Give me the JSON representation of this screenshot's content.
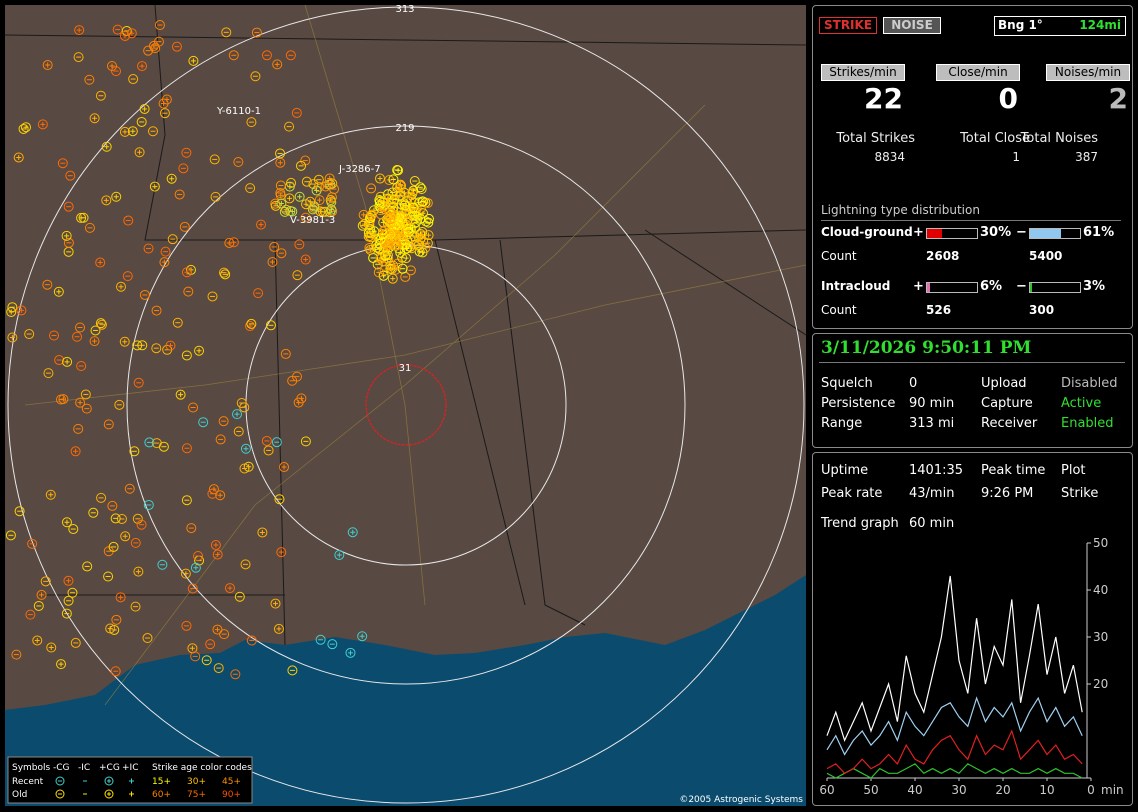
{
  "map": {
    "range_labels": [
      "313",
      "219",
      "31"
    ],
    "storm_labels": [
      "Y-6110-1",
      "J-3286-7",
      "V-3981-3"
    ],
    "legend": {
      "symbols": "Symbols",
      "columns": [
        "-CG",
        "-IC",
        "+CG",
        "+IC"
      ],
      "age_title": "Strike age color codes",
      "recent": "Recent",
      "old": "Old",
      "recent_ages": [
        "15+",
        "30+",
        "45+"
      ],
      "old_ages": [
        "60+",
        "75+",
        "90+"
      ]
    },
    "copyright": "©2005 Astrogenic Systems"
  },
  "header": {
    "strike": "STRIKE",
    "noise": "NOISE",
    "bearing": "Bng 1°",
    "distance": "124mi"
  },
  "rates": [
    {
      "label": "Strikes/min",
      "value": 22,
      "total_label": "Total Strikes",
      "total": 8834
    },
    {
      "label": "Close/min",
      "value": 0,
      "total_label": "Total Close",
      "total": 1
    },
    {
      "label": "Noises/min",
      "value": 2,
      "total_label": "Total Noises",
      "total": 387
    }
  ],
  "distribution": {
    "title": "Lightning type distribution",
    "count_label": "Count",
    "rows": [
      {
        "name": "Cloud-ground",
        "plus_sign": "+",
        "plus": {
          "value": 30,
          "label": "30%"
        },
        "minus_sign": "−",
        "minus": {
          "value": 61,
          "label": "61%"
        },
        "plus_count": 2608,
        "minus_count": 5400
      },
      {
        "name": "Intracloud",
        "plus_sign": "+",
        "plus": {
          "value": 6,
          "label": "6%"
        },
        "minus_sign": "−",
        "minus": {
          "value": 3,
          "label": "3%"
        },
        "plus_count": 526,
        "minus_count": 300
      }
    ]
  },
  "datetime": "3/11/2026 9:50:11 PM",
  "status": [
    [
      "Squelch",
      0,
      "Upload",
      "Disabled"
    ],
    [
      "Persistence",
      "90 min",
      "Capture",
      "Active"
    ],
    [
      "Range",
      "313 mi",
      "Receiver",
      "Enabled"
    ]
  ],
  "stats": [
    [
      "Uptime",
      "1401:35",
      "Peak time",
      "Plot"
    ],
    [
      "Peak rate",
      "43/min",
      "9:26 PM",
      "Strike"
    ]
  ],
  "trend": {
    "label": "Trend graph",
    "value": "60 min"
  },
  "chart_data": {
    "type": "line",
    "x_unit": "min",
    "x": [
      60,
      58,
      56,
      54,
      52,
      50,
      48,
      46,
      44,
      42,
      40,
      38,
      36,
      34,
      32,
      30,
      28,
      26,
      24,
      22,
      20,
      18,
      16,
      14,
      12,
      10,
      8,
      6,
      4,
      2
    ],
    "xlim": [
      60,
      0
    ],
    "xticks": [
      60,
      50,
      40,
      30,
      20,
      10,
      0
    ],
    "ylim": [
      0,
      50
    ],
    "yticks": [
      20,
      30,
      40,
      50
    ],
    "series": [
      {
        "color": "#ffffff",
        "values": [
          9,
          14,
          8,
          12,
          16,
          10,
          15,
          20,
          12,
          26,
          18,
          14,
          22,
          30,
          43,
          25,
          18,
          34,
          20,
          28,
          24,
          38,
          16,
          26,
          37,
          22,
          30,
          18,
          24,
          14
        ]
      },
      {
        "color": "#9fd0f0",
        "values": [
          6,
          9,
          5,
          8,
          10,
          7,
          9,
          12,
          8,
          14,
          11,
          9,
          12,
          15,
          16,
          13,
          11,
          17,
          12,
          15,
          13,
          16,
          10,
          14,
          17,
          12,
          15,
          11,
          13,
          9
        ]
      },
      {
        "color": "#e02020",
        "values": [
          2,
          3,
          1,
          2,
          4,
          2,
          3,
          5,
          3,
          7,
          4,
          3,
          6,
          8,
          9,
          6,
          4,
          9,
          5,
          7,
          6,
          10,
          4,
          6,
          8,
          5,
          7,
          4,
          5,
          3
        ]
      },
      {
        "color": "#30c030",
        "values": [
          1,
          0,
          1,
          2,
          1,
          0,
          2,
          1,
          1,
          2,
          3,
          1,
          2,
          1,
          2,
          1,
          3,
          2,
          1,
          2,
          1,
          2,
          1,
          1,
          2,
          1,
          2,
          1,
          1,
          0
        ]
      }
    ]
  }
}
